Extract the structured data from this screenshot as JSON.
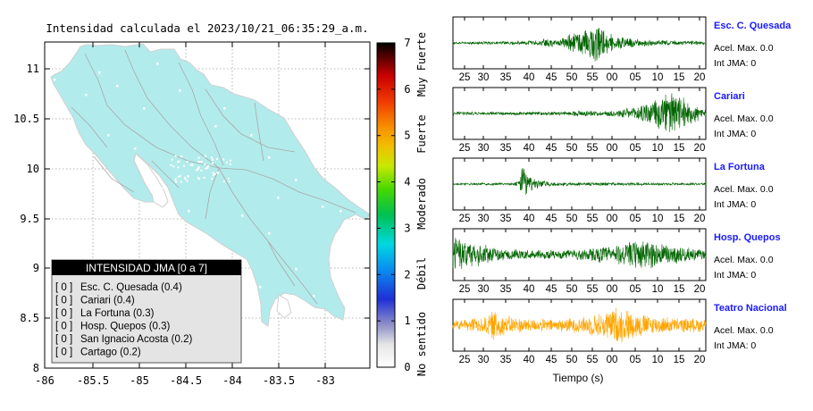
{
  "map": {
    "title": "Intensidad calculada el 2023/10/21_06:35:29_a.m.",
    "x_ticks": [
      "-86",
      "-85.5",
      "-85",
      "-84.5",
      "-84",
      "-83.5",
      "-83"
    ],
    "y_ticks": [
      "11",
      "10.5",
      "10",
      "9.5",
      "9",
      "8.5",
      "8"
    ],
    "legend_title": "INTENSIDAD JMA [0 a 7]",
    "legend_items": [
      {
        "level": "[ 0 ]",
        "label": "Esc. C. Quesada (0.4)"
      },
      {
        "level": "[ 0 ]",
        "label": "Cariari (0.4)"
      },
      {
        "level": "[ 0 ]",
        "label": "La Fortuna (0.3)"
      },
      {
        "level": "[ 0 ]",
        "label": "Hosp. Quepos (0.3)"
      },
      {
        "level": "[ 0 ]",
        "label": "San Ignacio Acosta (0.2)"
      },
      {
        "level": "[ 0 ]",
        "label": "Cartago (0.2)"
      }
    ]
  },
  "colorbar": {
    "ticks": [
      "0",
      "1",
      "2",
      "3",
      "4",
      "5",
      "6",
      "7"
    ],
    "labels": [
      "No sentido",
      "Débil",
      "Moderado",
      "Fuerte",
      "Muy Fuerte"
    ]
  },
  "chart_data": {
    "type": "line",
    "xlabel": "Tiempo (s)",
    "x_ticks": [
      "25",
      "30",
      "35",
      "40",
      "45",
      "50",
      "55",
      "00",
      "05",
      "10",
      "15",
      "20"
    ],
    "series": [
      {
        "name": "Esc. C. Quesada",
        "accel_label": "Acel. Max. 0.0",
        "jma_label": "Int JMA: 0",
        "color": "#006400",
        "profile": [
          [
            0,
            0.06
          ],
          [
            0.28,
            0.08
          ],
          [
            0.38,
            0.22
          ],
          [
            0.42,
            0.12
          ],
          [
            0.45,
            0.35
          ],
          [
            0.5,
            0.55
          ],
          [
            0.57,
            1.0
          ],
          [
            0.62,
            0.45
          ],
          [
            0.7,
            0.2
          ],
          [
            0.8,
            0.12
          ],
          [
            1,
            0.08
          ]
        ]
      },
      {
        "name": "Cariari",
        "accel_label": "Acel. Max. 0.0",
        "jma_label": "Int JMA: 0",
        "color": "#006400",
        "profile": [
          [
            0,
            0.07
          ],
          [
            0.45,
            0.08
          ],
          [
            0.5,
            0.15
          ],
          [
            0.58,
            0.1
          ],
          [
            0.66,
            0.18
          ],
          [
            0.72,
            0.3
          ],
          [
            0.78,
            0.6
          ],
          [
            0.86,
            1.0
          ],
          [
            0.93,
            0.55
          ],
          [
            1,
            0.25
          ]
        ]
      },
      {
        "name": "La Fortuna",
        "accel_label": "Acel. Max. 0.0",
        "jma_label": "Int JMA: 0",
        "color": "#006400",
        "profile": [
          [
            0,
            0.05
          ],
          [
            0.24,
            0.06
          ],
          [
            0.265,
            0.25
          ],
          [
            0.275,
            1.0
          ],
          [
            0.3,
            0.35
          ],
          [
            0.34,
            0.18
          ],
          [
            0.4,
            0.08
          ],
          [
            1,
            0.05
          ]
        ]
      },
      {
        "name": "Hosp. Quepos",
        "accel_label": "Acel. Max. 0.0",
        "jma_label": "Int JMA: 0",
        "color": "#006400",
        "profile": [
          [
            0,
            1.0
          ],
          [
            0.05,
            0.6
          ],
          [
            0.1,
            0.5
          ],
          [
            0.18,
            0.3
          ],
          [
            0.3,
            0.2
          ],
          [
            0.45,
            0.22
          ],
          [
            0.55,
            0.3
          ],
          [
            0.65,
            0.45
          ],
          [
            0.75,
            0.7
          ],
          [
            0.82,
            0.55
          ],
          [
            0.9,
            0.35
          ],
          [
            1,
            0.2
          ]
        ]
      },
      {
        "name": "Teatro Nacional",
        "accel_label": "Acel. Max. 0.0",
        "jma_label": "Int JMA: 0",
        "color": "#ffa500",
        "profile": [
          [
            0,
            0.2
          ],
          [
            0.12,
            0.35
          ],
          [
            0.17,
            0.75
          ],
          [
            0.2,
            0.45
          ],
          [
            0.3,
            0.3
          ],
          [
            0.4,
            0.28
          ],
          [
            0.5,
            0.35
          ],
          [
            0.58,
            0.55
          ],
          [
            0.65,
            0.85
          ],
          [
            0.72,
            0.6
          ],
          [
            0.8,
            0.4
          ],
          [
            0.9,
            0.32
          ],
          [
            1,
            0.3
          ]
        ]
      }
    ]
  }
}
